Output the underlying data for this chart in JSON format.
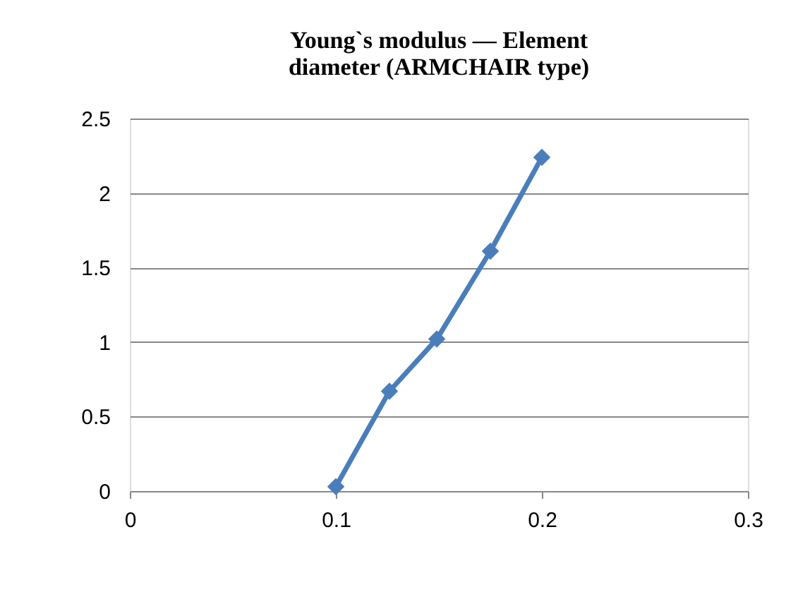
{
  "chart_data": {
    "type": "line",
    "title": "Young`s modulus — Element diameter (ARMCHAIR type)",
    "x": [
      0.1,
      0.126,
      0.149,
      0.175,
      0.2
    ],
    "series": [
      {
        "color": "#4a7ebb",
        "values": [
          0.03,
          0.67,
          1.02,
          1.61,
          2.24
        ]
      }
    ],
    "xlim": [
      0,
      0.3
    ],
    "xticks": [
      0,
      0.1,
      0.2,
      0.3
    ],
    "ylim": [
      0,
      2.5
    ],
    "yticks": [
      0,
      0.5,
      1,
      1.5,
      2,
      2.5
    ],
    "grid": "y",
    "marker": "diamond",
    "line_style": "solid"
  }
}
